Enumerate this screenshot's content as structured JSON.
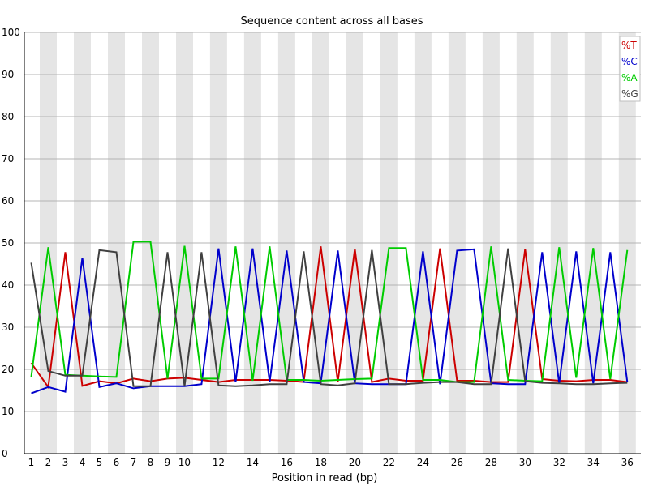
{
  "chart_data": {
    "type": "line",
    "title": "Sequence content across all bases",
    "xlabel": "Position in read (bp)",
    "ylabel": "",
    "ylim": [
      0,
      100
    ],
    "y_ticks": [
      "0",
      "10",
      "20",
      "30",
      "40",
      "50",
      "60",
      "70",
      "80",
      "90",
      "100"
    ],
    "x": [
      1,
      2,
      3,
      4,
      5,
      6,
      7,
      8,
      9,
      10,
      11,
      12,
      13,
      14,
      15,
      16,
      17,
      18,
      19,
      20,
      21,
      22,
      23,
      24,
      25,
      26,
      27,
      28,
      29,
      30,
      31,
      32,
      33,
      34,
      35,
      36
    ],
    "x_tick_labels": [
      "1",
      "2",
      "3",
      "4",
      "5",
      "6",
      "7",
      "8",
      "9",
      "10",
      "12",
      "14",
      "16",
      "18",
      "20",
      "22",
      "24",
      "26",
      "28",
      "30",
      "32",
      "34",
      "36"
    ],
    "x_tick_positions": [
      1,
      2,
      3,
      4,
      5,
      6,
      7,
      8,
      9,
      10,
      12,
      14,
      16,
      18,
      20,
      22,
      24,
      26,
      28,
      30,
      32,
      34,
      36
    ],
    "grid": true,
    "alternating_bands": true,
    "legend_position": "top-right",
    "series": [
      {
        "name": "%T",
        "color": "#cc0000",
        "values": [
          21.5,
          15.8,
          47.8,
          16.1,
          17.2,
          16.7,
          17.8,
          17.2,
          17.8,
          18.0,
          17.5,
          17.0,
          17.5,
          17.5,
          17.5,
          17.3,
          17.0,
          49.2,
          17.0,
          48.6,
          17.0,
          17.8,
          17.3,
          17.3,
          48.7,
          17.3,
          17.3,
          17.0,
          17.0,
          48.5,
          17.7,
          17.3,
          17.2,
          17.5,
          17.5,
          17.0
        ]
      },
      {
        "name": "%C",
        "color": "#0000cc",
        "values": [
          14.3,
          15.8,
          14.7,
          46.5,
          15.8,
          16.7,
          15.5,
          16.0,
          16.0,
          16.0,
          16.5,
          48.7,
          17.0,
          48.7,
          17.0,
          48.2,
          17.0,
          16.7,
          48.2,
          16.7,
          16.5,
          16.5,
          16.5,
          48.0,
          16.5,
          48.2,
          48.5,
          16.7,
          16.5,
          16.5,
          47.8,
          16.7,
          48.0,
          16.7,
          47.8,
          17.0
        ]
      },
      {
        "name": "%A",
        "color": "#00cc00",
        "values": [
          18.2,
          49.0,
          18.7,
          18.5,
          18.3,
          18.2,
          50.3,
          50.3,
          17.8,
          49.3,
          17.8,
          17.8,
          49.2,
          17.3,
          49.2,
          17.5,
          17.5,
          17.3,
          17.5,
          17.7,
          17.8,
          48.8,
          48.8,
          17.5,
          17.5,
          17.0,
          17.0,
          49.2,
          17.5,
          17.3,
          17.2,
          49.0,
          18.0,
          48.8,
          17.7,
          48.3
        ]
      },
      {
        "name": "%G",
        "color": "#404040",
        "values": [
          45.3,
          19.6,
          18.5,
          18.5,
          48.3,
          47.8,
          16.0,
          16.0,
          47.8,
          16.0,
          47.8,
          16.2,
          16.0,
          16.2,
          16.5,
          16.5,
          48.0,
          16.5,
          16.2,
          16.7,
          48.3,
          16.5,
          16.5,
          16.8,
          17.0,
          17.0,
          16.5,
          16.5,
          48.7,
          17.2,
          16.8,
          16.7,
          16.5,
          16.5,
          16.7,
          16.8
        ]
      }
    ]
  }
}
